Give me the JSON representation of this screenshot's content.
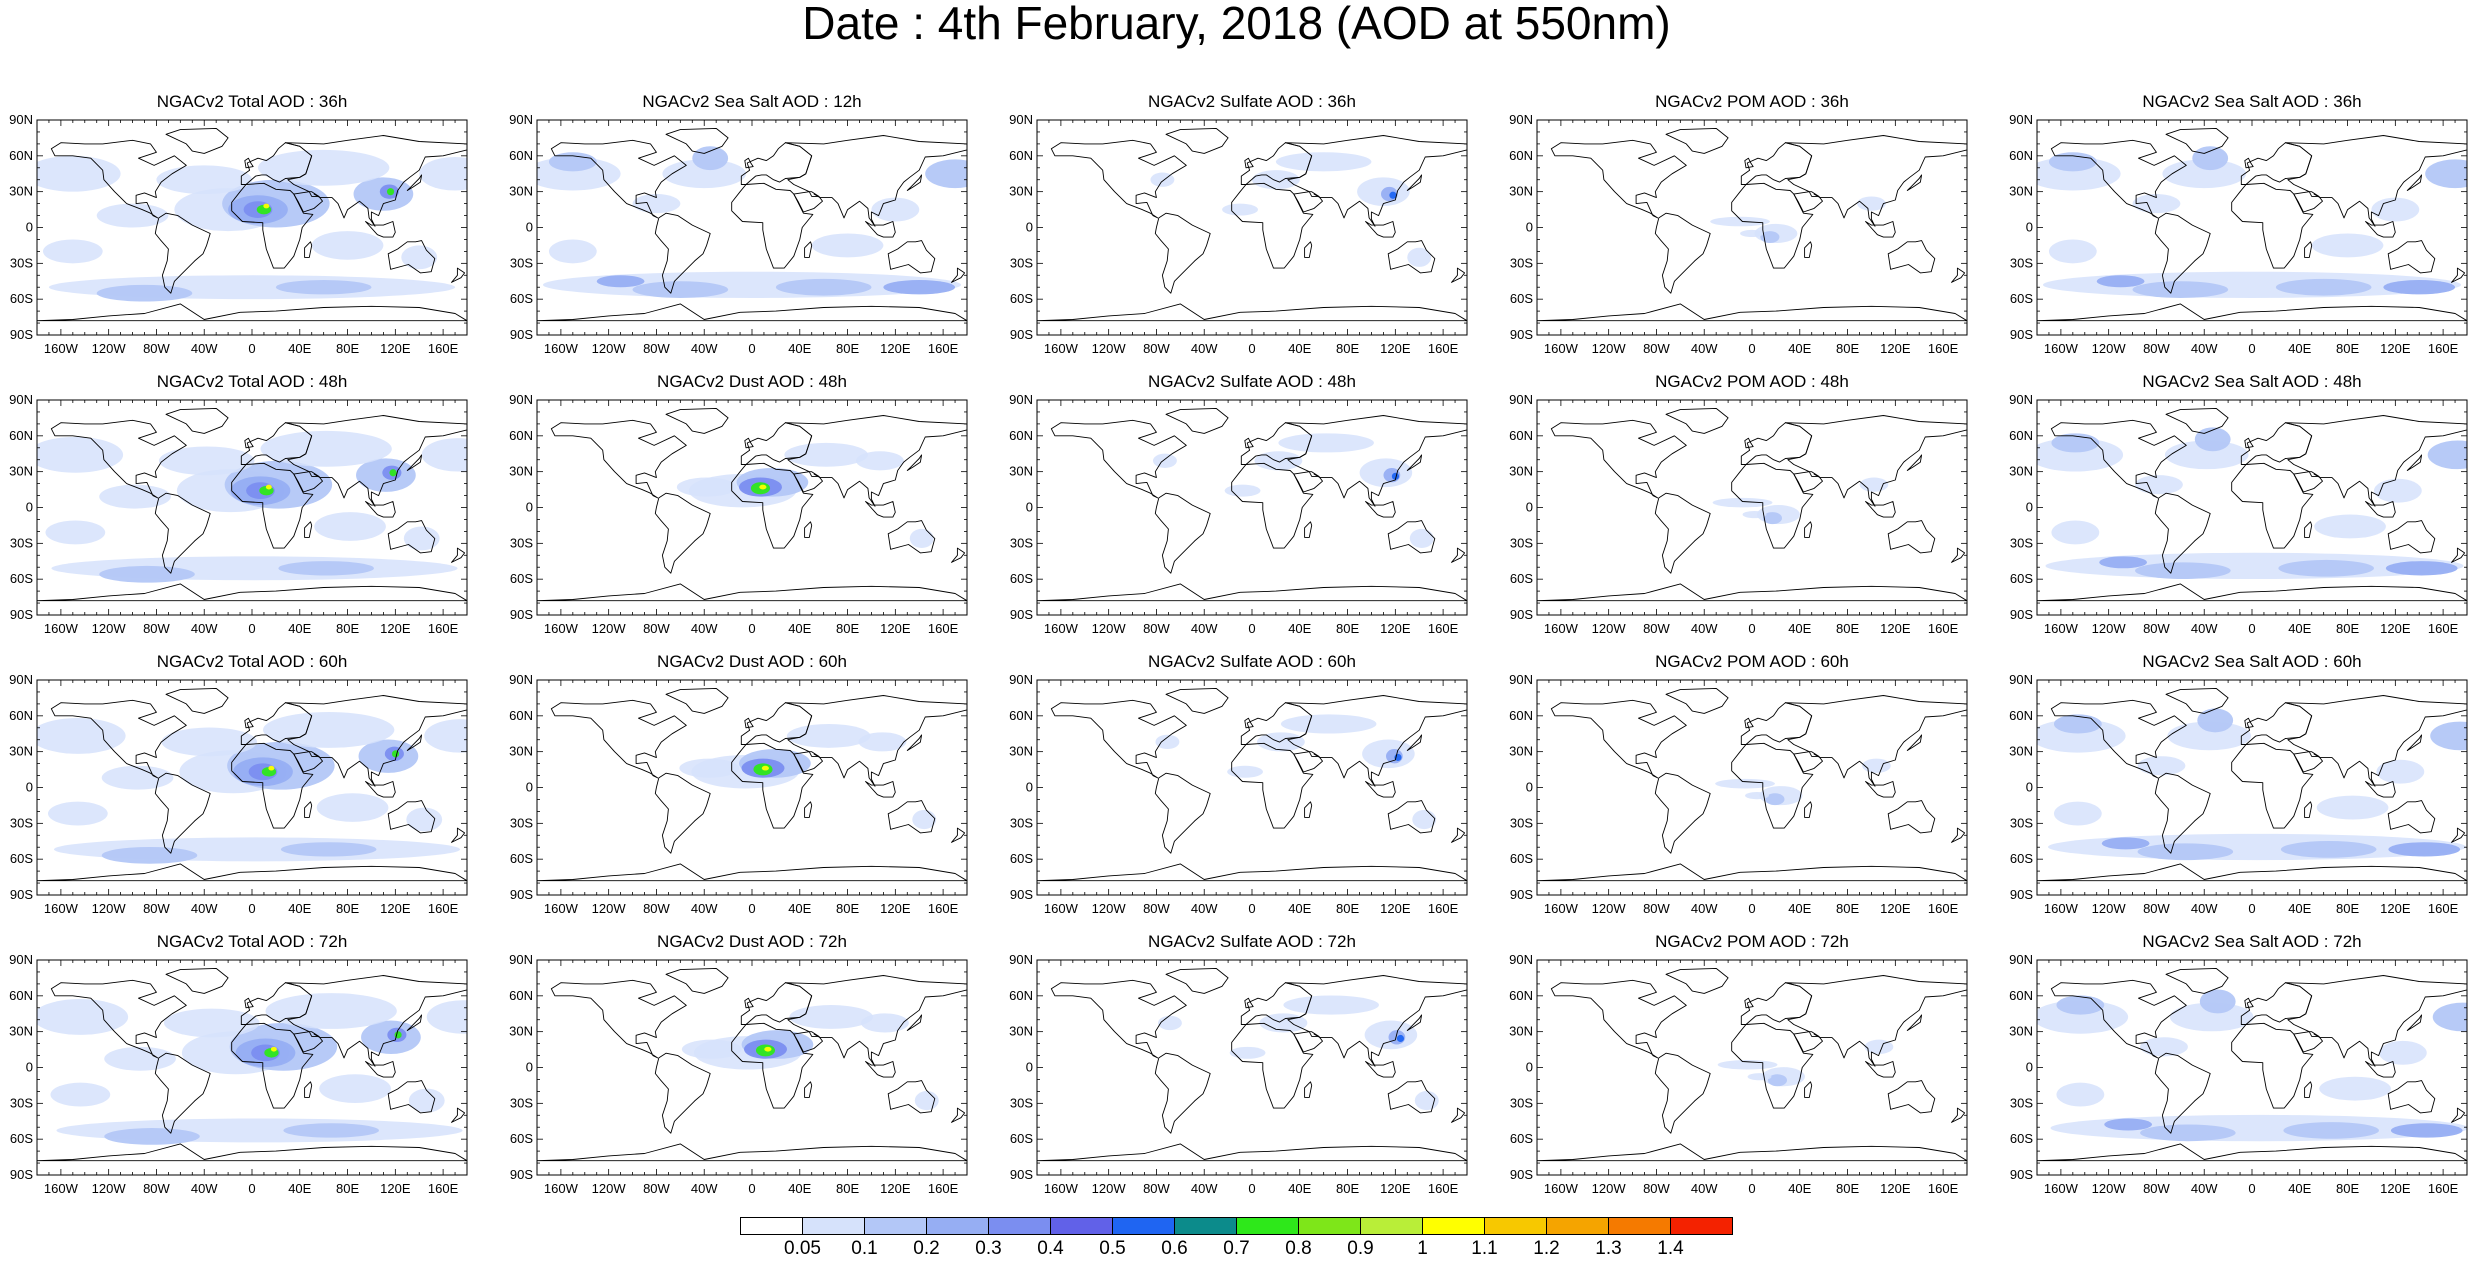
{
  "title": "Date : 4th February, 2018 (AOD at 550nm)",
  "panels": [
    [
      "NGACv2 Total AOD : 36h",
      "NGACv2 Sea Salt  AOD : 12h",
      "NGACv2 Sulfate AOD : 36h",
      "NGACv2 POM AOD : 36h",
      "NGACv2 Sea Salt  AOD : 36h"
    ],
    [
      "NGACv2 Total AOD : 48h",
      "NGACv2 Dust AOD : 48h",
      "NGACv2 Sulfate AOD : 48h",
      "NGACv2 POM AOD : 48h",
      "NGACv2 Sea Salt  AOD : 48h"
    ],
    [
      "NGACv2 Total AOD : 60h",
      "NGACv2 Dust AOD : 60h",
      "NGACv2 Sulfate AOD : 60h",
      "NGACv2 POM AOD : 60h",
      "NGACv2 Sea Salt  AOD : 60h"
    ],
    [
      "NGACv2 Total AOD : 72h",
      "NGACv2 Dust AOD : 72h",
      "NGACv2 Sulfate AOD : 72h",
      "NGACv2 POM AOD : 72h",
      "NGACv2 Sea Salt  AOD : 72h"
    ]
  ],
  "lat_labels": [
    "90N",
    "60N",
    "30N",
    "0",
    "30S",
    "60S",
    "90S"
  ],
  "lon_labels": [
    "160W",
    "120W",
    "80W",
    "40W",
    "0",
    "40E",
    "80E",
    "120E",
    "160E"
  ],
  "colorbar": {
    "levels": [
      "0.05",
      "0.1",
      "0.2",
      "0.3",
      "0.4",
      "0.5",
      "0.6",
      "0.7",
      "0.8",
      "0.9",
      "1",
      "1.1",
      "1.2",
      "1.3",
      "1.4"
    ],
    "colors": [
      "#ffffff",
      "#d6e2fb",
      "#b3c7f7",
      "#96aef3",
      "#7b8ef0",
      "#6161e8",
      "#1f65f2",
      "#0c8b8b",
      "#2ee81a",
      "#7ee619",
      "#b9ee38",
      "#ffff00",
      "#f7c800",
      "#f5a400",
      "#f57a00",
      "#f42200"
    ]
  },
  "fields": {
    "total": {
      "blob_colors": [
        "#d6e2fb",
        "#b3c7f7",
        "#96aef3",
        "#7b8ef0",
        "#2ee81a",
        "#ffff00"
      ]
    },
    "seasalt": {
      "blob_colors": [
        "#d6e2fb",
        "#b3c7f7",
        "#96aef3"
      ]
    },
    "dust": {
      "blob_colors": [
        "#d6e2fb",
        "#b3c7f7",
        "#7b8ef0",
        "#2ee81a",
        "#ffff00"
      ]
    },
    "sulfate": {
      "blob_colors": [
        "#d6e2fb",
        "#96aef3",
        "#1f65f2"
      ]
    },
    "pom": {
      "blob_colors": [
        "#d6e2fb",
        "#b3c7f7"
      ]
    }
  }
}
